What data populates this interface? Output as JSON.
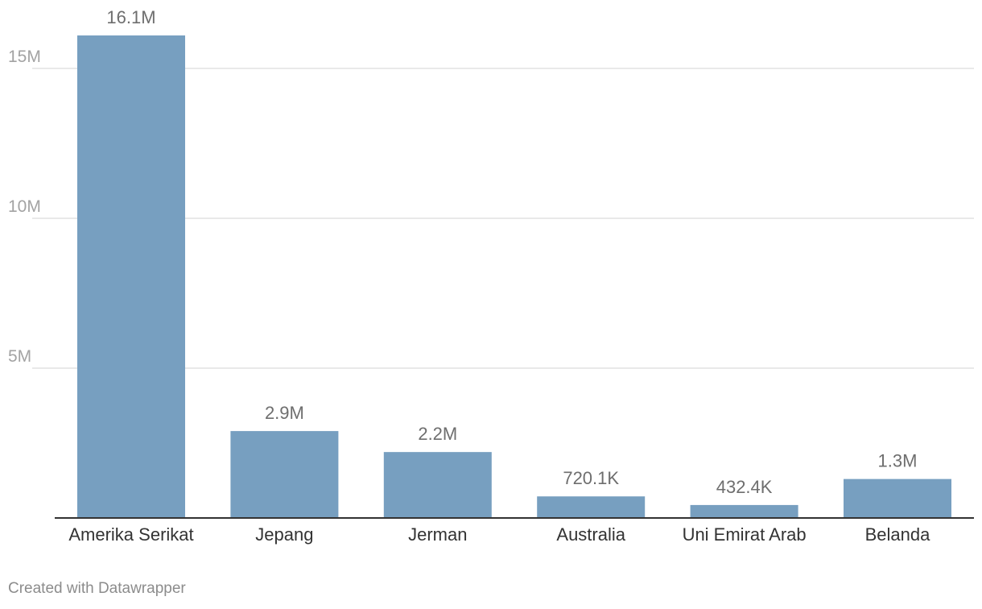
{
  "chart_data": {
    "type": "bar",
    "categories": [
      "Amerika Serikat",
      "Jepang",
      "Jerman",
      "Australia",
      "Uni Emirat Arab",
      "Belanda"
    ],
    "values": [
      16100000,
      2900000,
      2200000,
      720100,
      432400,
      1300000
    ],
    "value_labels": [
      "16.1M",
      "2.9M",
      "2.2M",
      "720.1K",
      "432.4K",
      "1.3M"
    ],
    "y_ticks": [
      {
        "value": 5000000,
        "label": "5M"
      },
      {
        "value": 10000000,
        "label": "10M"
      },
      {
        "value": 15000000,
        "label": "15M"
      }
    ],
    "ylim": [
      0,
      16100000
    ],
    "grid": true,
    "bar_color": "#779fc0",
    "gridline_color": "#e2e2e2",
    "axis_color": "#333333"
  },
  "footer": {
    "credit": "Created with Datawrapper"
  }
}
